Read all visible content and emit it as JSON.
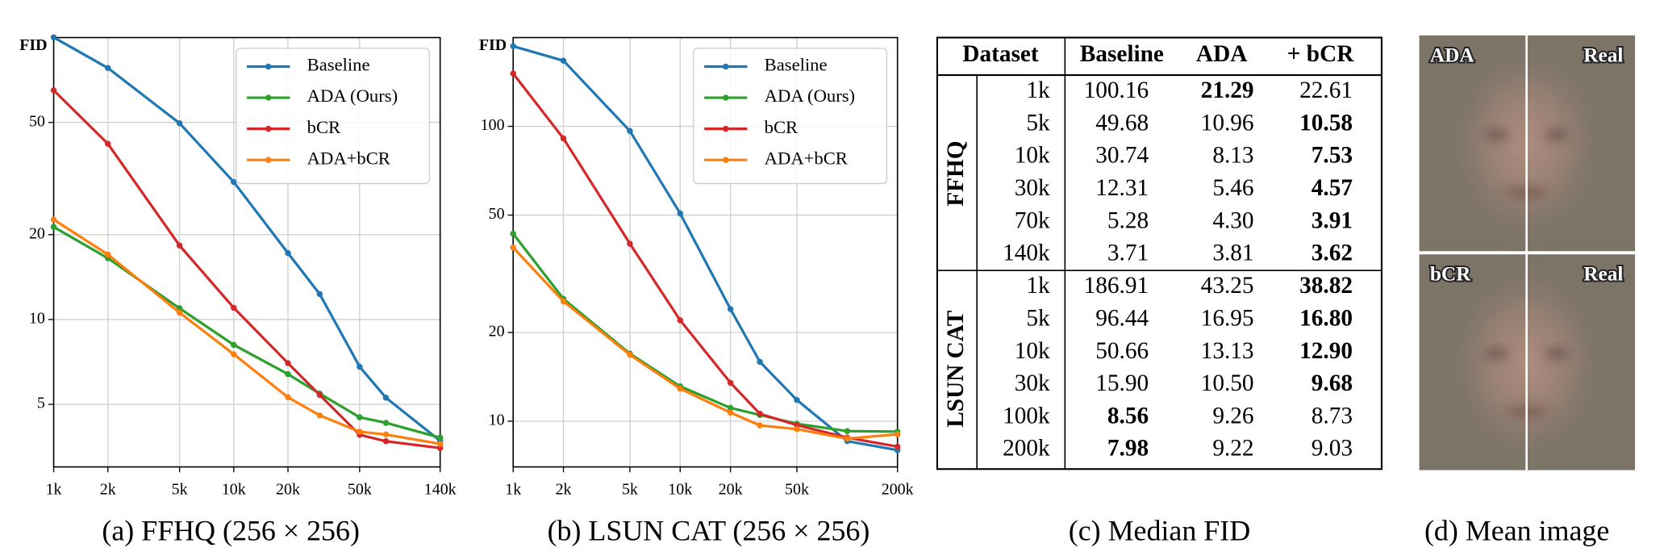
{
  "chart_data": [
    {
      "type": "line",
      "caption": "(a) FFHQ (256 × 256)",
      "ylabel": "FID",
      "xscale": "log",
      "yscale": "log",
      "grid": true,
      "legend": "upper right",
      "x": [
        1000,
        2000,
        5000,
        10000,
        20000,
        30000,
        50000,
        70000,
        140000
      ],
      "xlim": [
        1000,
        140000
      ],
      "ylim": [
        3,
        100
      ],
      "xticks": [
        {
          "value": 1000,
          "label": "1k"
        },
        {
          "value": 2000,
          "label": "2k"
        },
        {
          "value": 5000,
          "label": "5k"
        },
        {
          "value": 10000,
          "label": "10k"
        },
        {
          "value": 20000,
          "label": "20k"
        },
        {
          "value": 50000,
          "label": "50k"
        },
        {
          "value": 140000,
          "label": "140k"
        }
      ],
      "yticks": [
        5,
        10,
        20,
        50
      ],
      "series": [
        {
          "name": "Baseline",
          "color": "#1f77b4",
          "values": [
            100.16,
            78,
            49.68,
            30.74,
            17.2,
            12.31,
            6.8,
            5.28,
            3.71
          ]
        },
        {
          "name": "ADA (Ours)",
          "color": "#2ca02c",
          "values": [
            21.29,
            16.5,
            10.96,
            8.13,
            6.4,
            5.46,
            4.5,
            4.3,
            3.81
          ]
        },
        {
          "name": "bCR",
          "color": "#d62728",
          "values": [
            65,
            42,
            18.3,
            11,
            7,
            5.4,
            3.9,
            3.7,
            3.5
          ]
        },
        {
          "name": "ADA+bCR",
          "color": "#ff7f0e",
          "values": [
            22.61,
            17,
            10.58,
            7.53,
            5.3,
            4.57,
            4,
            3.91,
            3.62
          ]
        }
      ]
    },
    {
      "type": "line",
      "caption": "(b) LSUN CAT (256 × 256)",
      "ylabel": "FID",
      "xscale": "log",
      "yscale": "log",
      "grid": true,
      "legend": "upper right",
      "x": [
        1000,
        2000,
        5000,
        10000,
        20000,
        30000,
        50000,
        100000,
        200000
      ],
      "xlim": [
        1000,
        200000
      ],
      "ylim": [
        7,
        200
      ],
      "xticks": [
        {
          "value": 1000,
          "label": "1k"
        },
        {
          "value": 2000,
          "label": "2k"
        },
        {
          "value": 5000,
          "label": "5k"
        },
        {
          "value": 10000,
          "label": "10k"
        },
        {
          "value": 20000,
          "label": "20k"
        },
        {
          "value": 50000,
          "label": "50k"
        },
        {
          "value": 200000,
          "label": "200k"
        }
      ],
      "yticks": [
        10,
        20,
        50,
        100
      ],
      "series": [
        {
          "name": "Baseline",
          "color": "#1f77b4",
          "values": [
            186.91,
            167,
            96.44,
            50.66,
            24,
            15.9,
            11.8,
            8.56,
            7.98
          ]
        },
        {
          "name": "ADA (Ours)",
          "color": "#2ca02c",
          "values": [
            43.25,
            26,
            16.95,
            13.13,
            11.1,
            10.5,
            9.8,
            9.26,
            9.22
          ]
        },
        {
          "name": "bCR",
          "color": "#d62728",
          "values": [
            151,
            91,
            40,
            22,
            13.5,
            10.6,
            9.7,
            8.8,
            8.2
          ]
        },
        {
          "name": "ADA+bCR",
          "color": "#ff7f0e",
          "values": [
            38.82,
            25.5,
            16.8,
            12.9,
            10.7,
            9.68,
            9.4,
            8.73,
            9.03
          ]
        }
      ]
    }
  ],
  "table": {
    "caption": "(c) Median FID",
    "header": [
      "Dataset",
      "Baseline",
      "ADA",
      "+ bCR"
    ],
    "groups": [
      {
        "name": "FFHQ",
        "rows": [
          {
            "size": "1k",
            "cells": [
              "100.16",
              "21.29",
              "22.61"
            ],
            "bold": [
              1
            ]
          },
          {
            "size": "5k",
            "cells": [
              "49.68",
              "10.96",
              "10.58"
            ],
            "bold": [
              2
            ]
          },
          {
            "size": "10k",
            "cells": [
              "30.74",
              "8.13",
              "7.53"
            ],
            "bold": [
              2
            ]
          },
          {
            "size": "30k",
            "cells": [
              "12.31",
              "5.46",
              "4.57"
            ],
            "bold": [
              2
            ]
          },
          {
            "size": "70k",
            "cells": [
              "5.28",
              "4.30",
              "3.91"
            ],
            "bold": [
              2
            ]
          },
          {
            "size": "140k",
            "cells": [
              "3.71",
              "3.81",
              "3.62"
            ],
            "bold": [
              2
            ]
          }
        ]
      },
      {
        "name": "LSUN CAT",
        "rows": [
          {
            "size": "1k",
            "cells": [
              "186.91",
              "43.25",
              "38.82"
            ],
            "bold": [
              2
            ]
          },
          {
            "size": "5k",
            "cells": [
              "96.44",
              "16.95",
              "16.80"
            ],
            "bold": [
              2
            ]
          },
          {
            "size": "10k",
            "cells": [
              "50.66",
              "13.13",
              "12.90"
            ],
            "bold": [
              2
            ]
          },
          {
            "size": "30k",
            "cells": [
              "15.90",
              "10.50",
              "9.68"
            ],
            "bold": [
              2
            ]
          },
          {
            "size": "100k",
            "cells": [
              "8.56",
              "9.26",
              "8.73"
            ],
            "bold": [
              0
            ]
          },
          {
            "size": "200k",
            "cells": [
              "7.98",
              "9.22",
              "9.03"
            ],
            "bold": [
              0
            ]
          }
        ]
      }
    ]
  },
  "mean_image": {
    "caption": "(d) Mean image",
    "labels": [
      [
        "ADA",
        "Real"
      ],
      [
        "bCR",
        "Real"
      ]
    ]
  }
}
